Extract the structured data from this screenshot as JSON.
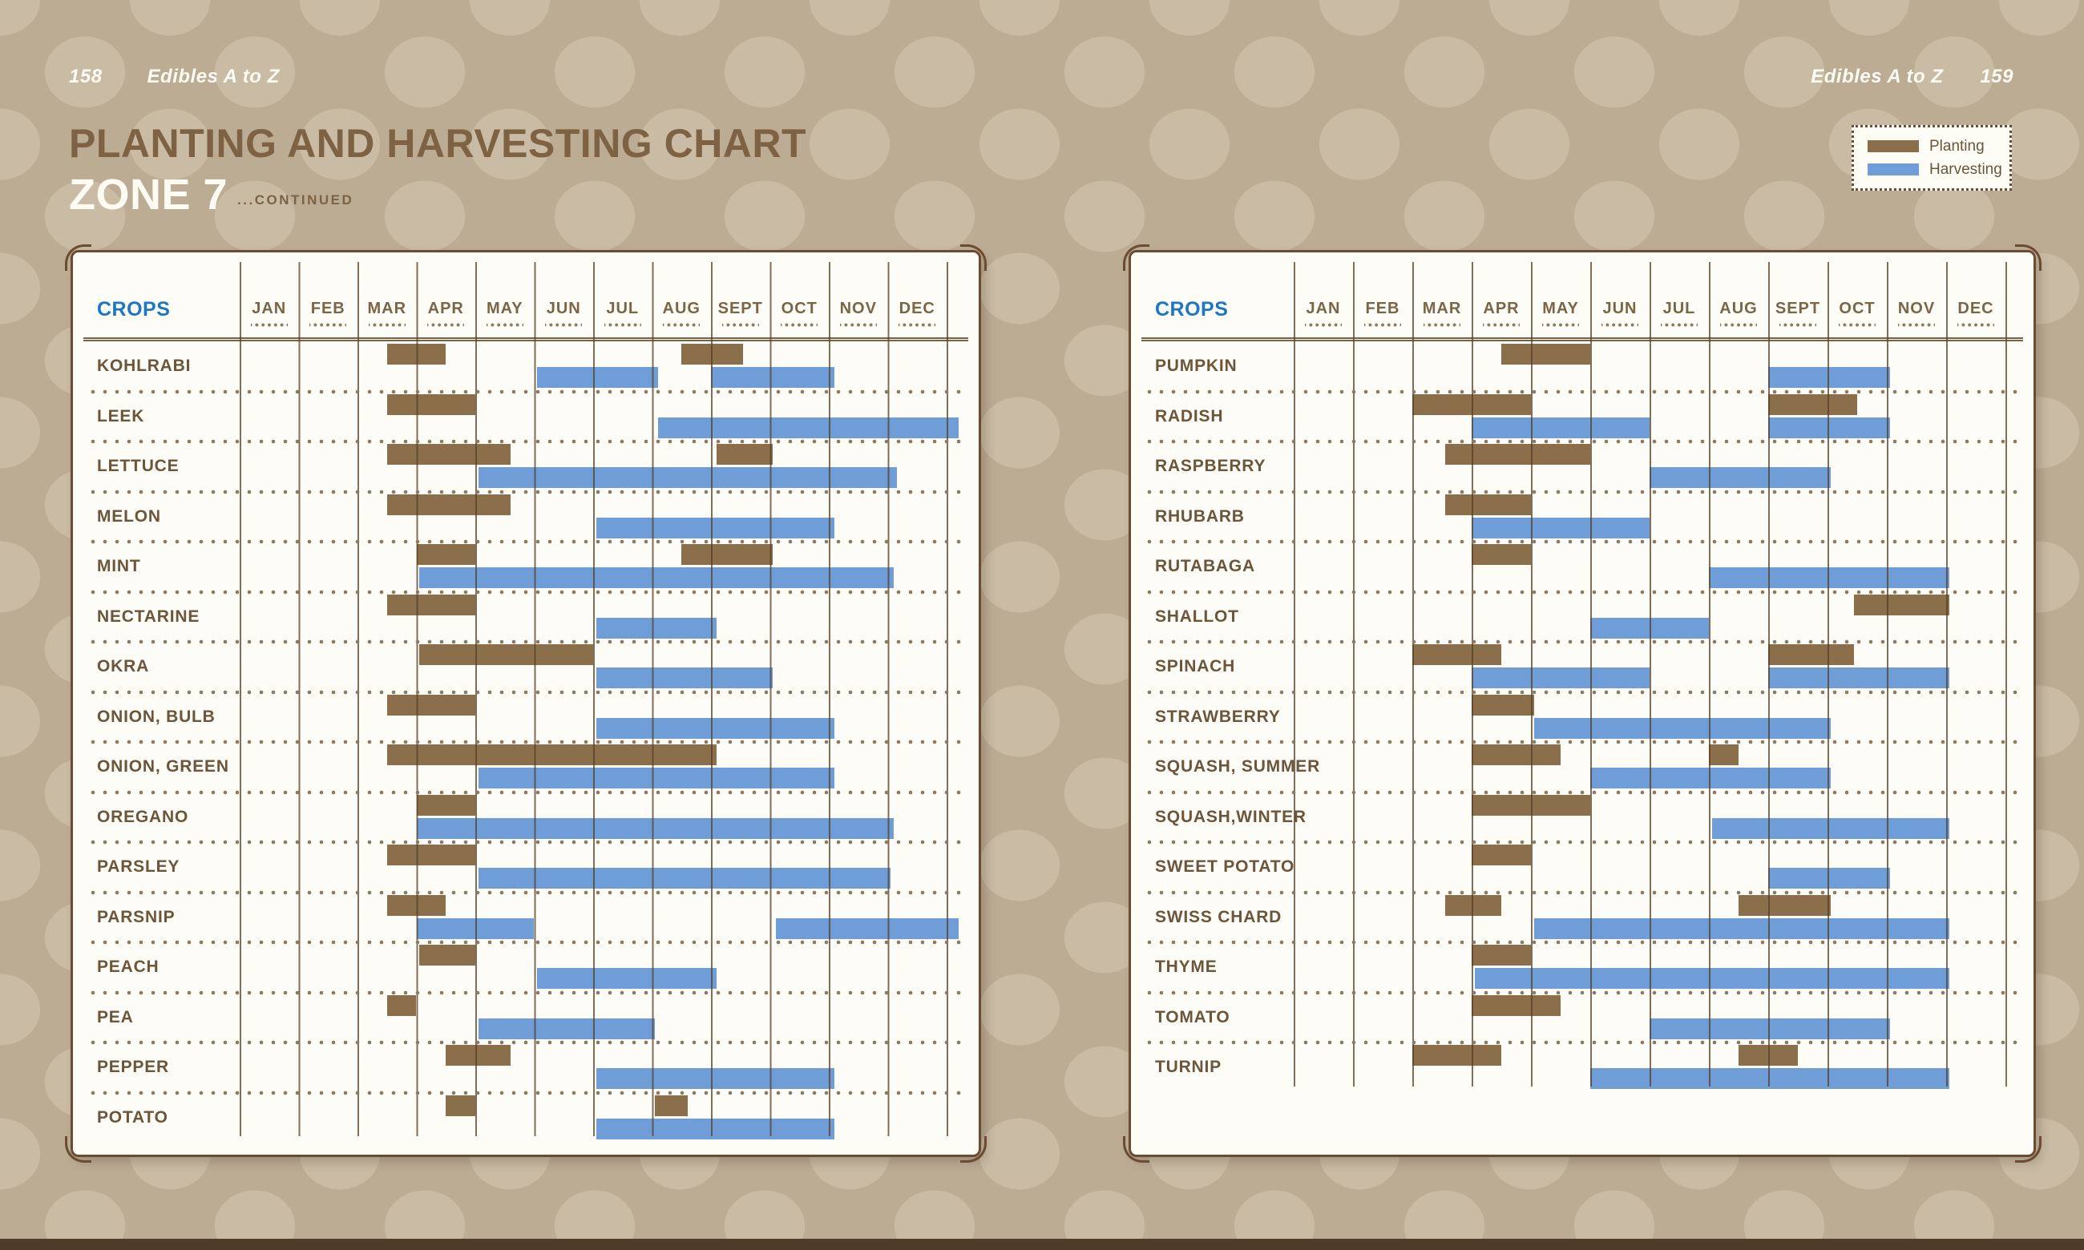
{
  "header": {
    "left": {
      "number": "158",
      "title": "Edibles A to Z"
    },
    "right": {
      "title": "Edibles A to Z",
      "number": "159"
    }
  },
  "title": {
    "line1": "PLANTING AND HARVESTING CHART",
    "line2": "ZONE 7",
    "continued": "...CONTINUED"
  },
  "crops_header": "CROPS",
  "months": [
    "JAN",
    "FEB",
    "MAR",
    "APR",
    "MAY",
    "JUN",
    "JUL",
    "AUG",
    "SEPT",
    "OCT",
    "NOV",
    "DEC"
  ],
  "legend": {
    "items": [
      {
        "label": "Planting",
        "color": "#8B6F4B"
      },
      {
        "label": "Harvesting",
        "color": "#6F9DD8"
      }
    ]
  },
  "colors": {
    "planting": "#8B6F4B",
    "harvesting": "#6F9DD8",
    "crops_header_blue": "#1D76C2",
    "title_brown": "#7D6244",
    "card_border": "#6B4C33",
    "background_tan": "#BCAC94"
  },
  "chart_data": [
    {
      "type": "gantt",
      "page": "158",
      "title": "Planting and Harvesting Chart Zone 7 (continued)",
      "x_axis_months": [
        "JAN",
        "FEB",
        "MAR",
        "APR",
        "MAY",
        "JUN",
        "JUL",
        "AUG",
        "SEPT",
        "OCT",
        "NOV",
        "DEC"
      ],
      "units": "month index 0=Jan start, 12=Dec end",
      "series_legend": [
        "planting",
        "harvesting"
      ],
      "crops": [
        {
          "name": "KOHLRABI",
          "planting": [
            [
              2.5,
              3.5
            ],
            [
              7.5,
              8.55
            ]
          ],
          "harvesting": [
            [
              5.05,
              7.1
            ],
            [
              8.0,
              10.1
            ]
          ]
        },
        {
          "name": "LEEK",
          "planting": [
            [
              2.5,
              4.0
            ]
          ],
          "harvesting": [
            [
              7.1,
              12.2
            ]
          ]
        },
        {
          "name": "LETTUCE",
          "planting": [
            [
              2.5,
              4.6
            ],
            [
              8.1,
              9.05
            ]
          ],
          "harvesting": [
            [
              4.05,
              11.15
            ]
          ]
        },
        {
          "name": "MELON",
          "planting": [
            [
              2.5,
              4.6
            ]
          ],
          "harvesting": [
            [
              6.05,
              10.1
            ]
          ]
        },
        {
          "name": "MINT",
          "planting": [
            [
              3.0,
              4.0
            ],
            [
              7.5,
              9.05
            ]
          ],
          "harvesting": [
            [
              3.05,
              11.1
            ]
          ]
        },
        {
          "name": "NECTARINE",
          "planting": [
            [
              2.5,
              4.0
            ]
          ],
          "harvesting": [
            [
              6.05,
              8.1
            ]
          ]
        },
        {
          "name": "OKRA",
          "planting": [
            [
              3.05,
              6.0
            ]
          ],
          "harvesting": [
            [
              6.05,
              9.05
            ]
          ]
        },
        {
          "name": "ONION, BULB",
          "planting": [
            [
              2.5,
              4.0
            ]
          ],
          "harvesting": [
            [
              6.05,
              10.1
            ]
          ]
        },
        {
          "name": "ONION, GREEN",
          "planting": [
            [
              2.5,
              8.1
            ]
          ],
          "harvesting": [
            [
              4.05,
              10.1
            ]
          ]
        },
        {
          "name": "OREGANO",
          "planting": [
            [
              3.0,
              4.0
            ]
          ],
          "harvesting": [
            [
              3.0,
              11.1
            ]
          ]
        },
        {
          "name": "PARSLEY",
          "planting": [
            [
              2.5,
              4.0
            ]
          ],
          "harvesting": [
            [
              4.05,
              11.05
            ]
          ]
        },
        {
          "name": "PARSNIP",
          "planting": [
            [
              2.5,
              3.5
            ]
          ],
          "harvesting": [
            [
              3.0,
              5.0
            ],
            [
              9.1,
              12.2
            ]
          ]
        },
        {
          "name": "PEACH",
          "planting": [
            [
              3.05,
              4.0
            ]
          ],
          "harvesting": [
            [
              5.05,
              8.1
            ]
          ]
        },
        {
          "name": "PEA",
          "planting": [
            [
              2.5,
              3.0
            ]
          ],
          "harvesting": [
            [
              4.05,
              7.05
            ]
          ]
        },
        {
          "name": "PEPPER",
          "planting": [
            [
              3.5,
              4.6
            ]
          ],
          "harvesting": [
            [
              6.05,
              10.1
            ]
          ]
        },
        {
          "name": "POTATO",
          "planting": [
            [
              3.5,
              4.0
            ],
            [
              7.05,
              7.6
            ]
          ],
          "harvesting": [
            [
              6.05,
              10.1
            ]
          ]
        }
      ]
    },
    {
      "type": "gantt",
      "page": "159",
      "title": "Planting and Harvesting Chart Zone 7 (continued)",
      "x_axis_months": [
        "JAN",
        "FEB",
        "MAR",
        "APR",
        "MAY",
        "JUN",
        "JUL",
        "AUG",
        "SEPT",
        "OCT",
        "NOV",
        "DEC"
      ],
      "units": "month index 0=Jan start, 12=Dec end",
      "series_legend": [
        "planting",
        "harvesting"
      ],
      "crops": [
        {
          "name": "PUMPKIN",
          "planting": [
            [
              3.5,
              5.0
            ]
          ],
          "harvesting": [
            [
              8.0,
              10.05
            ]
          ]
        },
        {
          "name": "RADISH",
          "planting": [
            [
              2.0,
              4.0
            ],
            [
              8.0,
              9.5
            ]
          ],
          "harvesting": [
            [
              3.0,
              6.0
            ],
            [
              8.0,
              10.05
            ]
          ]
        },
        {
          "name": "RASPBERRY",
          "planting": [
            [
              2.55,
              5.0
            ]
          ],
          "harvesting": [
            [
              6.0,
              9.05
            ]
          ]
        },
        {
          "name": "RHUBARB",
          "planting": [
            [
              2.55,
              4.0
            ]
          ],
          "harvesting": [
            [
              3.0,
              6.0
            ]
          ]
        },
        {
          "name": "RUTABAGA",
          "planting": [
            [
              3.0,
              4.0
            ]
          ],
          "harvesting": [
            [
              7.0,
              11.05
            ]
          ]
        },
        {
          "name": "SHALLOT",
          "planting": [
            [
              9.45,
              11.05
            ]
          ],
          "harvesting": [
            [
              5.0,
              7.0
            ]
          ]
        },
        {
          "name": "SPINACH",
          "planting": [
            [
              2.0,
              3.5
            ],
            [
              8.0,
              9.45
            ]
          ],
          "harvesting": [
            [
              3.0,
              6.0
            ],
            [
              8.0,
              11.05
            ]
          ]
        },
        {
          "name": "STRAWBERRY",
          "planting": [
            [
              3.0,
              4.05
            ]
          ],
          "harvesting": [
            [
              4.05,
              9.05
            ]
          ]
        },
        {
          "name": "SQUASH, SUMMER",
          "planting": [
            [
              3.0,
              4.5
            ],
            [
              7.0,
              7.5
            ]
          ],
          "harvesting": [
            [
              5.0,
              9.05
            ]
          ]
        },
        {
          "name": "SQUASH,WINTER",
          "planting": [
            [
              3.0,
              5.0
            ]
          ],
          "harvesting": [
            [
              7.05,
              11.05
            ]
          ]
        },
        {
          "name": "SWEET POTATO",
          "planting": [
            [
              3.0,
              4.0
            ]
          ],
          "harvesting": [
            [
              8.0,
              10.05
            ]
          ]
        },
        {
          "name": "SWISS CHARD",
          "planting": [
            [
              2.55,
              3.5
            ],
            [
              7.5,
              9.05
            ]
          ],
          "harvesting": [
            [
              4.05,
              11.05
            ]
          ]
        },
        {
          "name": "THYME",
          "planting": [
            [
              3.0,
              4.0
            ]
          ],
          "harvesting": [
            [
              3.05,
              11.05
            ]
          ]
        },
        {
          "name": "TOMATO",
          "planting": [
            [
              3.0,
              4.5
            ]
          ],
          "harvesting": [
            [
              6.0,
              10.05
            ]
          ]
        },
        {
          "name": "TURNIP",
          "planting": [
            [
              2.0,
              3.5
            ],
            [
              7.5,
              8.5
            ]
          ],
          "harvesting": [
            [
              5.0,
              11.05
            ]
          ]
        }
      ]
    }
  ]
}
